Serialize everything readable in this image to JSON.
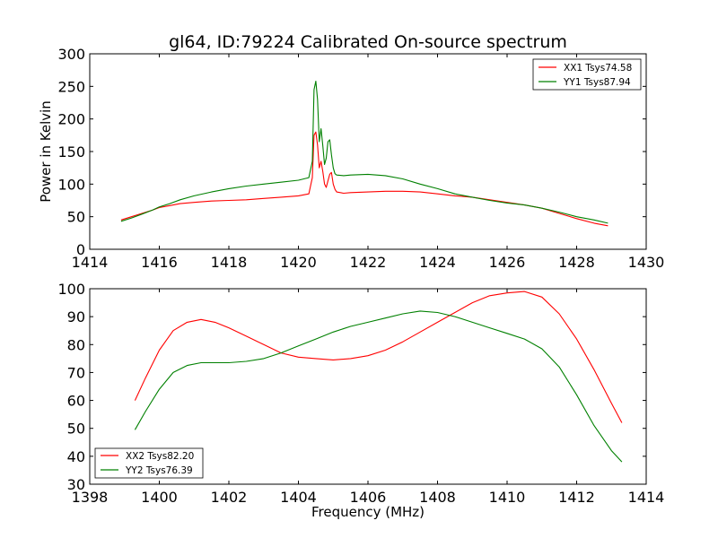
{
  "chart_data": [
    {
      "type": "line",
      "title": "gl64, ID:79224 Calibrated On-source spectrum",
      "xlabel": "",
      "ylabel": "Power in Kelvin",
      "xlim": [
        1414,
        1430
      ],
      "ylim": [
        0,
        300
      ],
      "xticks": [
        1414,
        1416,
        1418,
        1420,
        1422,
        1424,
        1426,
        1428,
        1430
      ],
      "yticks": [
        0,
        50,
        100,
        150,
        200,
        250,
        300
      ],
      "grid": false,
      "legend_position": "top-right",
      "series": [
        {
          "name": "XX1 Tsys74.58",
          "color": "#ff0000",
          "x": [
            1414.9,
            1415.2,
            1415.5,
            1415.8,
            1416.0,
            1416.3,
            1416.6,
            1417.0,
            1417.5,
            1418.0,
            1418.5,
            1419.0,
            1419.5,
            1420.0,
            1420.3,
            1420.4,
            1420.45,
            1420.5,
            1420.55,
            1420.6,
            1420.65,
            1420.7,
            1420.75,
            1420.8,
            1420.85,
            1420.9,
            1420.95,
            1421.0,
            1421.05,
            1421.1,
            1421.3,
            1421.5,
            1422.0,
            1422.5,
            1423.0,
            1423.5,
            1424.0,
            1424.5,
            1425.0,
            1425.5,
            1426.0,
            1426.5,
            1427.0,
            1427.5,
            1428.0,
            1428.5,
            1428.9
          ],
          "y": [
            45,
            50,
            55,
            60,
            64,
            67,
            70,
            72,
            74,
            75,
            76,
            78,
            80,
            82,
            85,
            110,
            175,
            180,
            160,
            125,
            135,
            120,
            100,
            95,
            105,
            115,
            118,
            100,
            92,
            88,
            86,
            87,
            88,
            89,
            89,
            88,
            85,
            82,
            80,
            76,
            72,
            68,
            63,
            55,
            47,
            40,
            36
          ]
        },
        {
          "name": "YY1 Tsys87.94",
          "color": "#008000",
          "x": [
            1414.9,
            1415.2,
            1415.5,
            1415.8,
            1416.0,
            1416.3,
            1416.6,
            1417.0,
            1417.5,
            1418.0,
            1418.5,
            1419.0,
            1419.5,
            1420.0,
            1420.3,
            1420.4,
            1420.45,
            1420.5,
            1420.55,
            1420.6,
            1420.65,
            1420.7,
            1420.75,
            1420.8,
            1420.85,
            1420.9,
            1420.95,
            1421.0,
            1421.05,
            1421.1,
            1421.3,
            1421.5,
            1422.0,
            1422.5,
            1423.0,
            1423.5,
            1424.0,
            1424.5,
            1425.0,
            1425.5,
            1426.0,
            1426.5,
            1427.0,
            1427.5,
            1428.0,
            1428.5,
            1428.9
          ],
          "y": [
            43,
            48,
            54,
            60,
            65,
            70,
            76,
            82,
            88,
            93,
            97,
            100,
            103,
            106,
            110,
            135,
            245,
            258,
            230,
            165,
            185,
            160,
            130,
            140,
            165,
            168,
            145,
            125,
            116,
            114,
            113,
            114,
            115,
            113,
            108,
            100,
            93,
            85,
            80,
            75,
            71,
            68,
            63,
            57,
            50,
            45,
            40
          ]
        }
      ]
    },
    {
      "type": "line",
      "title": "",
      "xlabel": "Frequency (MHz)",
      "ylabel": "",
      "xlim": [
        1398,
        1414
      ],
      "ylim": [
        30,
        100
      ],
      "xticks": [
        1398,
        1400,
        1402,
        1404,
        1406,
        1408,
        1410,
        1412,
        1414
      ],
      "yticks": [
        30,
        40,
        50,
        60,
        70,
        80,
        90,
        100
      ],
      "grid": false,
      "legend_position": "bottom-left",
      "series": [
        {
          "name": "XX2 Tsys82.20",
          "color": "#ff0000",
          "x": [
            1399.3,
            1399.6,
            1400.0,
            1400.4,
            1400.8,
            1401.2,
            1401.6,
            1402.0,
            1402.5,
            1403.0,
            1403.5,
            1404.0,
            1404.5,
            1405.0,
            1405.5,
            1406.0,
            1406.5,
            1407.0,
            1407.5,
            1408.0,
            1408.5,
            1409.0,
            1409.5,
            1410.0,
            1410.5,
            1411.0,
            1411.5,
            1412.0,
            1412.5,
            1413.0,
            1413.3
          ],
          "y": [
            60,
            68,
            78,
            85,
            88,
            89,
            88,
            86,
            83,
            80,
            77,
            75.5,
            75,
            74.5,
            75,
            76,
            78,
            81,
            84.5,
            88,
            91.5,
            95,
            97.5,
            98.5,
            99,
            97,
            91,
            82,
            71,
            59,
            52
          ]
        },
        {
          "name": "YY2 Tsys76.39",
          "color": "#008000",
          "x": [
            1399.3,
            1399.6,
            1400.0,
            1400.4,
            1400.8,
            1401.2,
            1401.6,
            1402.0,
            1402.5,
            1403.0,
            1403.5,
            1404.0,
            1404.5,
            1405.0,
            1405.5,
            1406.0,
            1406.5,
            1407.0,
            1407.5,
            1408.0,
            1408.5,
            1409.0,
            1409.5,
            1410.0,
            1410.5,
            1411.0,
            1411.5,
            1412.0,
            1412.5,
            1413.0,
            1413.3
          ],
          "y": [
            49.5,
            56,
            64,
            70,
            72.5,
            73.5,
            73.5,
            73.5,
            74,
            75,
            77,
            79.5,
            82,
            84.5,
            86.5,
            88,
            89.5,
            91,
            92,
            91.5,
            90,
            88,
            86,
            84,
            82,
            78.5,
            72,
            62,
            51,
            42,
            38
          ]
        }
      ]
    }
  ]
}
